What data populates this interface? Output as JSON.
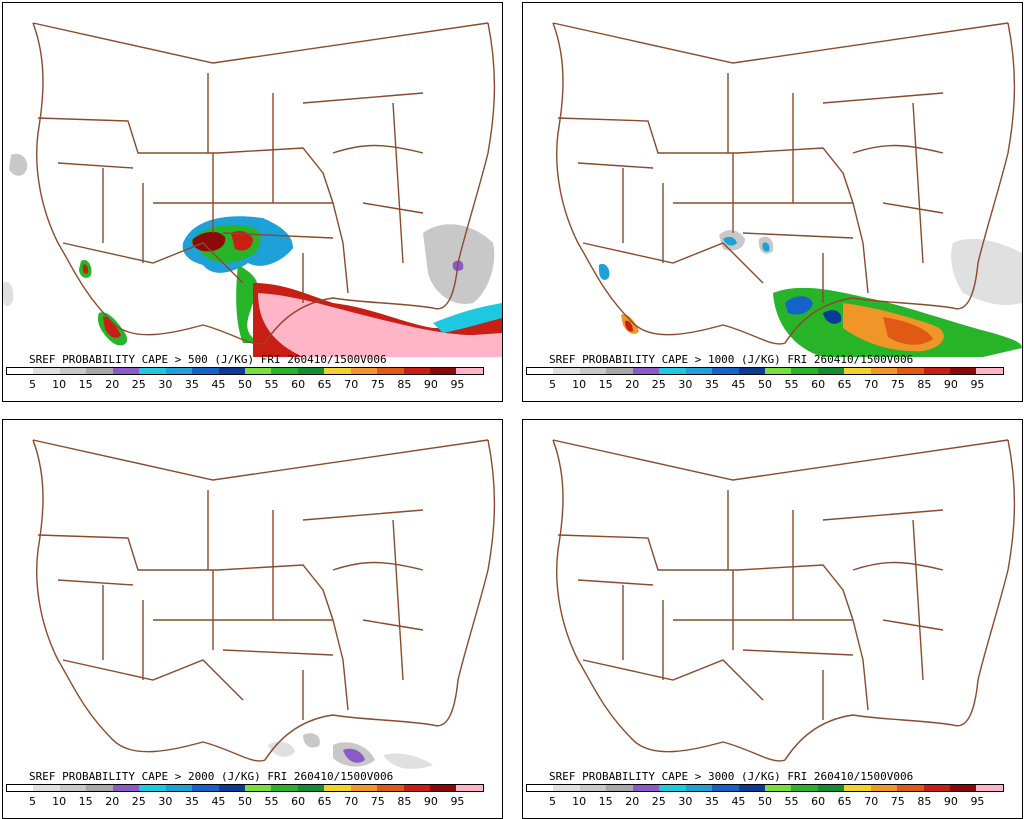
{
  "panels": [
    {
      "caption": "SREF PROBABILITY CAPE > 500 (J/KG) FRI 260410/1500V006"
    },
    {
      "caption": "SREF PROBABILITY CAPE > 1000 (J/KG) FRI 260410/1500V006"
    },
    {
      "caption": "SREF PROBABILITY CAPE > 2000 (J/KG) FRI 260410/1500V006"
    },
    {
      "caption": "SREF PROBABILITY CAPE > 3000 (J/KG) FRI 260410/1500V006"
    }
  ],
  "legend": {
    "labels": [
      "5",
      "10",
      "15",
      "20",
      "25",
      "30",
      "35",
      "45",
      "50",
      "55",
      "60",
      "65",
      "70",
      "75",
      "85",
      "90",
      "95"
    ],
    "colors": [
      "#ffffff",
      "#e0e0e0",
      "#c8c8c8",
      "#a8a8a8",
      "#8a5ac8",
      "#1ec8e0",
      "#1ea0d8",
      "#1464c8",
      "#0a3c96",
      "#78e03c",
      "#28b428",
      "#148c32",
      "#f0d22a",
      "#f09628",
      "#e05a14",
      "#c81e14",
      "#8c0a0a",
      "#ffb4c8"
    ]
  },
  "colors": {
    "state_lines": "#8b4a2b",
    "frame": "#000000"
  }
}
